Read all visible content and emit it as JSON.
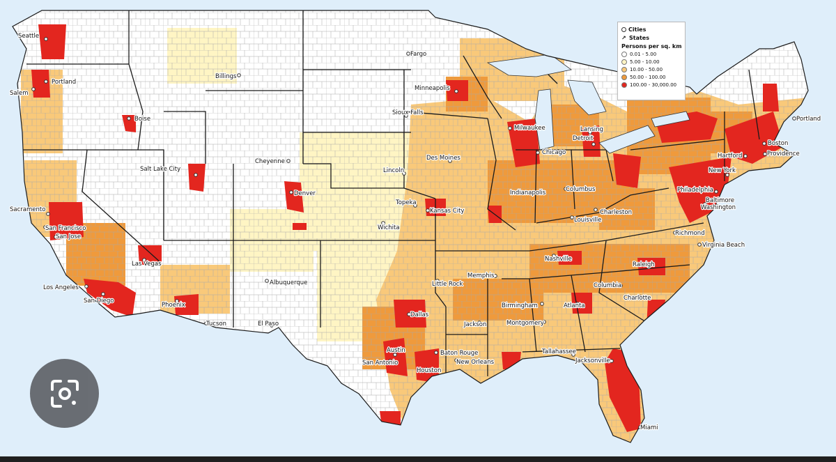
{
  "legend": {
    "cities_label": "Cities",
    "states_label": "States",
    "title": "Persons per sq. km",
    "classes": [
      {
        "label": "0.01 - 5.00",
        "color": "#ffffff"
      },
      {
        "label": "5.00 - 10.00",
        "color": "#fff5c4"
      },
      {
        "label": "10.00 - 50.00",
        "color": "#f9c97a"
      },
      {
        "label": "50.00 - 100.00",
        "color": "#ef9a3c"
      },
      {
        "label": "100.00 - 30,000.00",
        "color": "#e3261f"
      }
    ]
  },
  "colors": {
    "water": "#dfeefa",
    "state_border": "#1a1a1a",
    "county_border": "#9a9a9a"
  },
  "cities": [
    {
      "name": "Seattle"
    },
    {
      "name": "Portland"
    },
    {
      "name": "Salem"
    },
    {
      "name": "Boise"
    },
    {
      "name": "Billings"
    },
    {
      "name": "Fargo"
    },
    {
      "name": "Minneapolis"
    },
    {
      "name": "Sioux Falls"
    },
    {
      "name": "Milwaukee"
    },
    {
      "name": "Lansing"
    },
    {
      "name": "Detroit"
    },
    {
      "name": "Chicago"
    },
    {
      "name": "Des Moines"
    },
    {
      "name": "Cheyenne"
    },
    {
      "name": "Salt Lake City"
    },
    {
      "name": "Denver"
    },
    {
      "name": "Lincoln"
    },
    {
      "name": "Sacramento"
    },
    {
      "name": "San Francisco"
    },
    {
      "name": "San Jose"
    },
    {
      "name": "Topeka"
    },
    {
      "name": "Kansas City"
    },
    {
      "name": "Indianapolis"
    },
    {
      "name": "Columbus"
    },
    {
      "name": "Wichita"
    },
    {
      "name": "Charleston"
    },
    {
      "name": "Louisville"
    },
    {
      "name": "Las Vegas"
    },
    {
      "name": "Los Angeles"
    },
    {
      "name": "San Diego"
    },
    {
      "name": "Phoenix"
    },
    {
      "name": "Tucson"
    },
    {
      "name": "Albuquerque"
    },
    {
      "name": "El Paso"
    },
    {
      "name": "Nashville"
    },
    {
      "name": "Memphis"
    },
    {
      "name": "Little Rock"
    },
    {
      "name": "Dallas"
    },
    {
      "name": "Birmingham"
    },
    {
      "name": "Atlanta"
    },
    {
      "name": "Columbia"
    },
    {
      "name": "Charlotte"
    },
    {
      "name": "Raleigh"
    },
    {
      "name": "Jackson"
    },
    {
      "name": "Montgomery"
    },
    {
      "name": "Austin"
    },
    {
      "name": "San Antonio"
    },
    {
      "name": "Houston"
    },
    {
      "name": "Baton Rouge"
    },
    {
      "name": "New Orleans"
    },
    {
      "name": "Tallahassee"
    },
    {
      "name": "Jacksonville"
    },
    {
      "name": "Miami"
    },
    {
      "name": "Richmond"
    },
    {
      "name": "Virginia Beach"
    },
    {
      "name": "Washington"
    },
    {
      "name": "Baltimore"
    },
    {
      "name": "Philadelphia"
    },
    {
      "name": "New York"
    },
    {
      "name": "Hartford"
    },
    {
      "name": "Providence"
    },
    {
      "name": "Boston"
    },
    {
      "name": "Portland"
    }
  ]
}
